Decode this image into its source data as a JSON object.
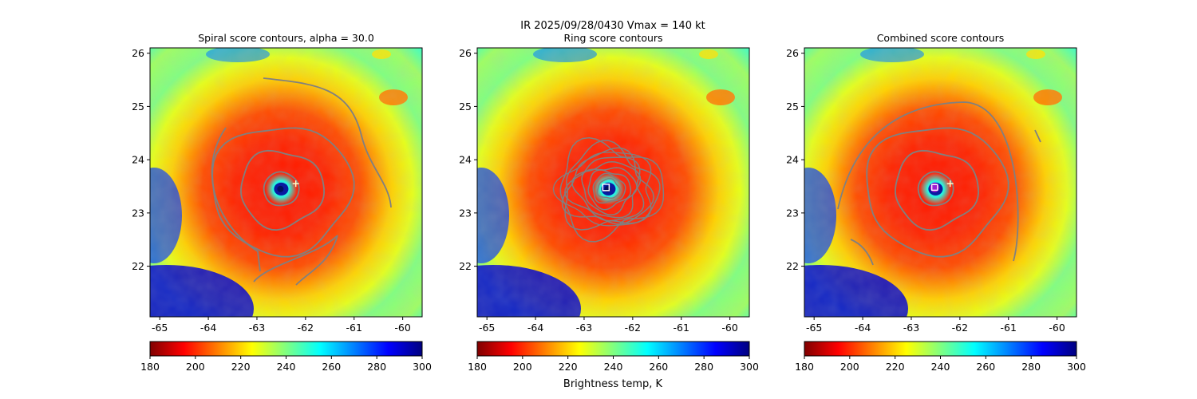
{
  "figure": {
    "suptitle": "IR  2025/09/28/0430    Vmax = 140 kt",
    "colorbar_label": "Brightness temp, K"
  },
  "colors": {
    "contour": "#808080",
    "guess_marker": "#ffffcc",
    "center_marker": "#ffffff",
    "center_marker_dark": "#3b2aa8"
  },
  "colormap": {
    "name": "jet_r",
    "stops": [
      "#800000",
      "#ff0000",
      "#ff8000",
      "#ffff00",
      "#80ff80",
      "#00ffff",
      "#0080ff",
      "#0000ff",
      "#000080"
    ]
  },
  "chart_data": [
    {
      "type": "heatmap",
      "title": "Spiral score contours, alpha = 30.0",
      "xlim": [
        -65.2,
        -59.6
      ],
      "ylim": [
        21.05,
        26.1
      ],
      "xticks": [
        "-65",
        "-64",
        "-63",
        "-62",
        "-61",
        "-60"
      ],
      "yticks": [
        "22",
        "23",
        "24",
        "25",
        "26"
      ],
      "field": "IR brightness temperature (K)",
      "storm_center": [
        -62.5,
        23.45
      ],
      "first_guess": [
        -62.2,
        23.55
      ],
      "contour_levels_note": "spiral score",
      "colorbar": {
        "min": 180,
        "max": 300,
        "ticks": [
          "180",
          "200",
          "220",
          "240",
          "260",
          "280",
          "300"
        ]
      }
    },
    {
      "type": "heatmap",
      "title": "Ring score contours",
      "xlim": [
        -65.2,
        -59.6
      ],
      "ylim": [
        21.05,
        26.1
      ],
      "xticks": [
        "-65",
        "-64",
        "-63",
        "-62",
        "-61",
        "-60"
      ],
      "yticks": [
        "22",
        "23",
        "24",
        "25",
        "26"
      ],
      "field": "IR brightness temperature (K)",
      "storm_center": [
        -62.5,
        23.45
      ],
      "ring_center": [
        -62.55,
        23.48
      ],
      "contour_levels_note": "ring score",
      "colorbar": {
        "min": 180,
        "max": 300,
        "ticks": [
          "180",
          "200",
          "220",
          "240",
          "260",
          "280",
          "300"
        ]
      }
    },
    {
      "type": "heatmap",
      "title": "Combined score contours",
      "xlim": [
        -65.2,
        -59.6
      ],
      "ylim": [
        21.05,
        26.1
      ],
      "xticks": [
        "-65",
        "-64",
        "-63",
        "-62",
        "-61",
        "-60"
      ],
      "yticks": [
        "22",
        "23",
        "24",
        "25",
        "26"
      ],
      "field": "IR brightness temperature (K)",
      "storm_center": [
        -62.5,
        23.45
      ],
      "first_guess": [
        -62.2,
        23.55
      ],
      "combined_center": [
        -62.52,
        23.48
      ],
      "contour_levels_note": "combined score",
      "colorbar": {
        "min": 180,
        "max": 300,
        "ticks": [
          "180",
          "200",
          "220",
          "240",
          "260",
          "280",
          "300"
        ]
      }
    }
  ]
}
